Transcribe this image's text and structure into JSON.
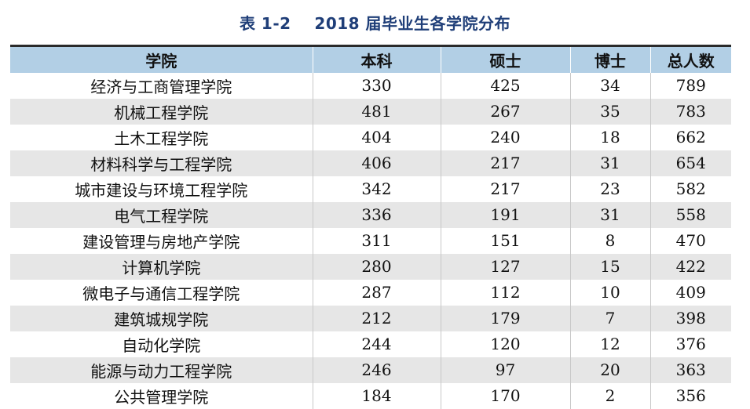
{
  "caption": {
    "label": "表 1-2",
    "title": "2018 届毕业生各学院分布"
  },
  "table": {
    "columns": [
      "学院",
      "本科",
      "硕士",
      "博士",
      "总人数"
    ],
    "rows": [
      [
        "经济与工商管理学院",
        "330",
        "425",
        "34",
        "789"
      ],
      [
        "机械工程学院",
        "481",
        "267",
        "35",
        "783"
      ],
      [
        "土木工程学院",
        "404",
        "240",
        "18",
        "662"
      ],
      [
        "材料科学与工程学院",
        "406",
        "217",
        "31",
        "654"
      ],
      [
        "城市建设与环境工程学院",
        "342",
        "217",
        "23",
        "582"
      ],
      [
        "电气工程学院",
        "336",
        "191",
        "31",
        "558"
      ],
      [
        "建设管理与房地产学院",
        "311",
        "151",
        "8",
        "470"
      ],
      [
        "计算机学院",
        "280",
        "127",
        "15",
        "422"
      ],
      [
        "微电子与通信工程学院",
        "287",
        "112",
        "10",
        "409"
      ],
      [
        "建筑城规学院",
        "212",
        "179",
        "7",
        "398"
      ],
      [
        "自动化学院",
        "244",
        "120",
        "12",
        "376"
      ],
      [
        "能源与动力工程学院",
        "246",
        "97",
        "20",
        "363"
      ],
      [
        "公共管理学院",
        "184",
        "170",
        "2",
        "356"
      ]
    ]
  }
}
